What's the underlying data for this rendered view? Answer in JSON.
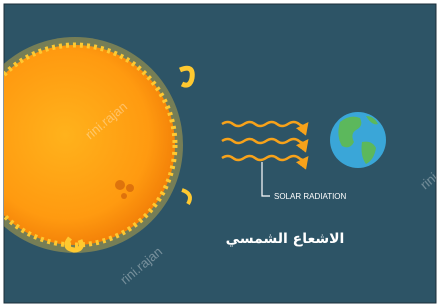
{
  "label": "SOLAR RADIATION",
  "caption": "الاشعاع الشمسي",
  "watermark": "rini.rajan"
}
